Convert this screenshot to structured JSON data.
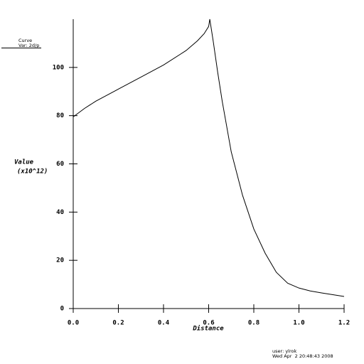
{
  "chart_data": {
    "type": "line",
    "legend_title": "Curve",
    "legend_var": "Var: 2d/p",
    "ylabel": "Value",
    "ylabel_units": "(x10^12)",
    "xlabel": "Distance",
    "user": "user: ylrok",
    "date": "Wed Apr  2 20:48:43 2008",
    "x": [
      0,
      0.05,
      0.1,
      0.2,
      0.3,
      0.4,
      0.5,
      0.55,
      0.58,
      0.6,
      0.605,
      0.62,
      0.64,
      0.66,
      0.7,
      0.75,
      0.8,
      0.85,
      0.9,
      0.95,
      1.0,
      1.05,
      1.1,
      1.2
    ],
    "series": [
      {
        "name": "Var: 2d/p",
        "color": "#000000",
        "values": [
          79.5,
          83,
          86,
          91,
          96,
          101,
          107,
          111,
          114,
          117,
          120,
          111,
          98,
          86,
          65,
          47,
          33,
          23,
          15,
          10.5,
          8.5,
          7.3,
          6.5,
          5
        ]
      }
    ],
    "xlim": [
      0,
      1.2
    ],
    "xticks": [
      {
        "value": 0,
        "label": "0.0"
      },
      {
        "value": 0.2,
        "label": "0.2"
      },
      {
        "value": 0.4,
        "label": "0.4"
      },
      {
        "value": 0.6,
        "label": "0.6"
      },
      {
        "value": 0.8,
        "label": "0.8"
      },
      {
        "value": 1.0,
        "label": "1.0"
      },
      {
        "value": 1.2,
        "label": "1.2"
      }
    ],
    "ylim": [
      0,
      120
    ],
    "yticks": [
      0,
      20,
      40,
      60,
      80,
      100
    ]
  }
}
